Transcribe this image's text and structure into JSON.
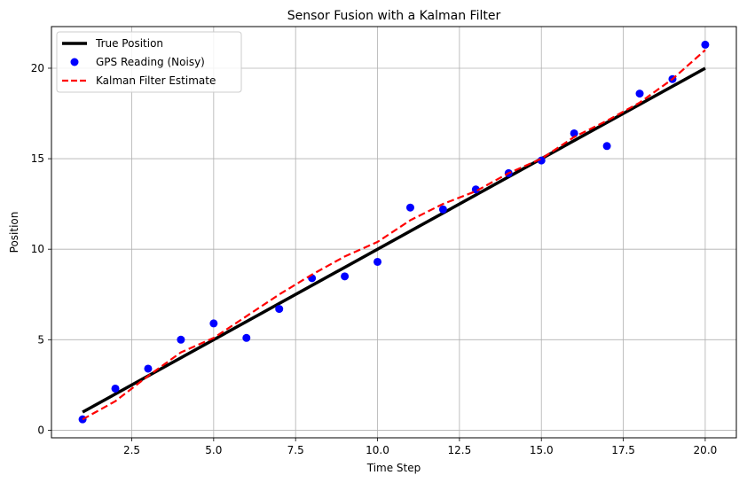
{
  "chart_data": {
    "type": "line",
    "title": "Sensor Fusion with a Kalman Filter",
    "xlabel": "Time Step",
    "ylabel": "Position",
    "xlim": [
      0.05,
      20.95
    ],
    "ylim": [
      -0.42,
      22.3
    ],
    "x_ticks": [
      2.5,
      5.0,
      7.5,
      10.0,
      12.5,
      15.0,
      17.5,
      20.0
    ],
    "x_tick_labels": [
      "2.5",
      "5.0",
      "7.5",
      "10.0",
      "12.5",
      "15.0",
      "17.5",
      "20.0"
    ],
    "y_ticks": [
      0,
      5,
      10,
      15,
      20
    ],
    "y_tick_labels": [
      "0",
      "5",
      "10",
      "15",
      "20"
    ],
    "grid": true,
    "legend_position": "top-left",
    "series": [
      {
        "name": "True Position",
        "style": "line",
        "color": "#000000",
        "x": [
          1,
          20
        ],
        "values": [
          1,
          20
        ]
      },
      {
        "name": "GPS Reading (Noisy)",
        "style": "scatter",
        "color": "#0000ff",
        "x": [
          1,
          2,
          3,
          4,
          5,
          6,
          7,
          8,
          9,
          10,
          11,
          12,
          13,
          14,
          15,
          16,
          17,
          18,
          19,
          20
        ],
        "values": [
          0.6,
          2.3,
          3.4,
          5.0,
          5.9,
          5.1,
          6.7,
          8.4,
          8.5,
          9.3,
          12.3,
          12.2,
          13.3,
          14.2,
          14.9,
          16.4,
          15.7,
          18.6,
          19.4,
          21.3
        ]
      },
      {
        "name": "Kalman Filter Estimate",
        "style": "dashed",
        "color": "#ff0000",
        "x": [
          1,
          2,
          3,
          4,
          5,
          6,
          7,
          8,
          9,
          10,
          11,
          12,
          13,
          14,
          15,
          16,
          17,
          18,
          19,
          20
        ],
        "values": [
          0.6,
          1.6,
          3.0,
          4.3,
          5.1,
          6.3,
          7.5,
          8.6,
          9.6,
          10.4,
          11.6,
          12.5,
          13.2,
          14.2,
          15.0,
          16.2,
          17.1,
          18.1,
          19.4,
          21.0
        ]
      }
    ]
  }
}
